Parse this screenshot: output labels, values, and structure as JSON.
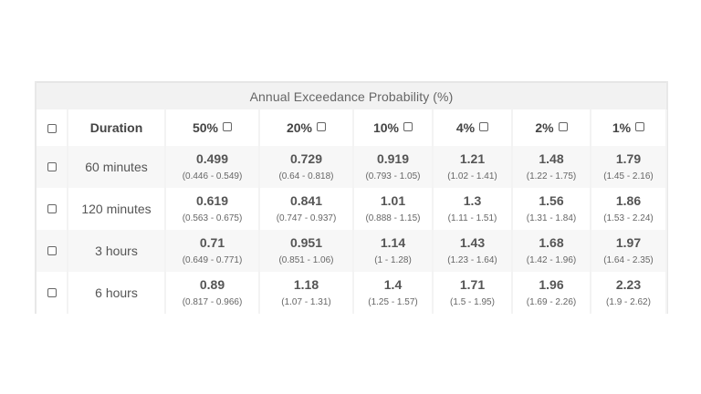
{
  "table": {
    "caption": "Annual Exceedance Probability (%)",
    "duration_header": "Duration",
    "aep_headers": [
      "50%",
      "20%",
      "10%",
      "4%",
      "2%",
      "1%"
    ],
    "rows": [
      {
        "duration": "60 minutes",
        "cells": [
          {
            "value": "0.499",
            "ci": "(0.446 - 0.549)"
          },
          {
            "value": "0.729",
            "ci": "(0.64 - 0.818)"
          },
          {
            "value": "0.919",
            "ci": "(0.793 - 1.05)"
          },
          {
            "value": "1.21",
            "ci": "(1.02 - 1.41)"
          },
          {
            "value": "1.48",
            "ci": "(1.22 - 1.75)"
          },
          {
            "value": "1.79",
            "ci": "(1.45 - 2.16)"
          }
        ]
      },
      {
        "duration": "120 minutes",
        "cells": [
          {
            "value": "0.619",
            "ci": "(0.563 - 0.675)"
          },
          {
            "value": "0.841",
            "ci": "(0.747 - 0.937)"
          },
          {
            "value": "1.01",
            "ci": "(0.888 - 1.15)"
          },
          {
            "value": "1.3",
            "ci": "(1.11 - 1.51)"
          },
          {
            "value": "1.56",
            "ci": "(1.31 - 1.84)"
          },
          {
            "value": "1.86",
            "ci": "(1.53 - 2.24)"
          }
        ]
      },
      {
        "duration": "3 hours",
        "cells": [
          {
            "value": "0.71",
            "ci": "(0.649 - 0.771)"
          },
          {
            "value": "0.951",
            "ci": "(0.851 - 1.06)"
          },
          {
            "value": "1.14",
            "ci": "(1 - 1.28)"
          },
          {
            "value": "1.43",
            "ci": "(1.23 - 1.64)"
          },
          {
            "value": "1.68",
            "ci": "(1.42 - 1.96)"
          },
          {
            "value": "1.97",
            "ci": "(1.64 - 2.35)"
          }
        ]
      },
      {
        "duration": "6 hours",
        "cells": [
          {
            "value": "0.89",
            "ci": "(0.817 - 0.966)"
          },
          {
            "value": "1.18",
            "ci": "(1.07 - 1.31)"
          },
          {
            "value": "1.4",
            "ci": "(1.25 - 1.57)"
          },
          {
            "value": "1.71",
            "ci": "(1.5 - 1.95)"
          },
          {
            "value": "1.96",
            "ci": "(1.69 - 2.26)"
          },
          {
            "value": "2.23",
            "ci": "(1.9 - 2.62)"
          }
        ]
      }
    ]
  }
}
